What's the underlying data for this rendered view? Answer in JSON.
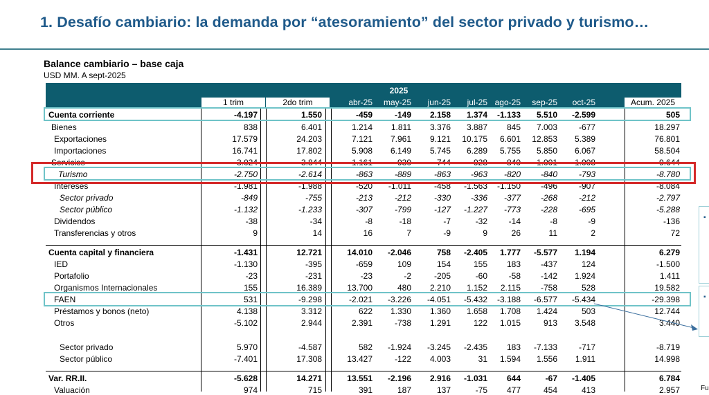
{
  "title": "1. Desafío cambiario: la demanda por “atesoramiento” del sector privado y turismo…",
  "table_title": "Balance cambiario – base caja",
  "table_subtitle": "USD MM. A sept-2025",
  "year": "2025",
  "col_headers": [
    "1 trim",
    "2do trim",
    "abr-25",
    "may-25",
    "jun-25",
    "jul-25",
    "ago-25",
    "sep-25",
    "oct-25",
    "Acum. 2025"
  ],
  "rows": [
    {
      "label": "Cuenta corriente",
      "style": "b",
      "v": [
        "-4.197",
        "1.550",
        "-459",
        "-149",
        "2.158",
        "1.374",
        "-1.133",
        "5.510",
        "-2.599",
        "505"
      ]
    },
    {
      "label": "Bienes",
      "style": "",
      "v": [
        "838",
        "6.401",
        "1.214",
        "1.811",
        "3.376",
        "3.887",
        "845",
        "7.003",
        "-677",
        "18.297"
      ]
    },
    {
      "label": "Exportaciones",
      "style": "",
      "v": [
        "17.579",
        "24.203",
        "7.121",
        "7.961",
        "9.121",
        "10.175",
        "6.601",
        "12.853",
        "5.389",
        "76.801"
      ]
    },
    {
      "label": "Importaciones",
      "style": "",
      "v": [
        "16.741",
        "17.802",
        "5.908",
        "6.149",
        "5.745",
        "6.289",
        "5.755",
        "5.850",
        "6.067",
        "58.504"
      ]
    },
    {
      "label": "Servicios",
      "style": "",
      "v": [
        "-3.024",
        "-3.844",
        "-1.161",
        "-930",
        "-744",
        "-928",
        "-840",
        "-1.001",
        "-1.008",
        "-9.644"
      ]
    },
    {
      "label": "Turismo",
      "style": "i",
      "v": [
        "-2.750",
        "-2.614",
        "-863",
        "-889",
        "-863",
        "-963",
        "-820",
        "-840",
        "-793",
        "-8.780"
      ]
    },
    {
      "label": "Intereses",
      "style": "",
      "v": [
        "-1.981",
        "-1.988",
        "-520",
        "-1.011",
        "-458",
        "-1.563",
        "-1.150",
        "-496",
        "-907",
        "-8.084"
      ]
    },
    {
      "label": "Sector privado",
      "style": "i",
      "v": [
        "-849",
        "-755",
        "-213",
        "-212",
        "-330",
        "-336",
        "-377",
        "-268",
        "-212",
        "-2.797"
      ]
    },
    {
      "label": "Sector público",
      "style": "i",
      "v": [
        "-1.132",
        "-1.233",
        "-307",
        "-799",
        "-127",
        "-1.227",
        "-773",
        "-228",
        "-695",
        "-5.288"
      ]
    },
    {
      "label": "Dividendos",
      "style": "",
      "v": [
        "-38",
        "-34",
        "-8",
        "-18",
        "-7",
        "-32",
        "-14",
        "-8",
        "-9",
        "-136"
      ]
    },
    {
      "label": "Transferencias y otros",
      "style": "",
      "v": [
        "9",
        "14",
        "16",
        "7",
        "-9",
        "9",
        "26",
        "11",
        "2",
        "72"
      ]
    },
    {
      "label": "Cuenta capital y financiera",
      "style": "b",
      "v": [
        "-1.431",
        "12.721",
        "14.010",
        "-2.046",
        "758",
        "-2.405",
        "1.777",
        "-5.577",
        "1.194",
        "6.279"
      ]
    },
    {
      "label": "IED",
      "style": "",
      "v": [
        "-1.130",
        "-395",
        "-659",
        "109",
        "154",
        "155",
        "183",
        "-437",
        "124",
        "-1.500"
      ]
    },
    {
      "label": "Portafolio",
      "style": "",
      "v": [
        "-23",
        "-231",
        "-23",
        "-2",
        "-205",
        "-60",
        "-58",
        "-142",
        "1.924",
        "1.411"
      ]
    },
    {
      "label": "Organismos Internacionales",
      "style": "",
      "v": [
        "155",
        "16.389",
        "13.700",
        "480",
        "2.210",
        "1.152",
        "2.115",
        "-758",
        "528",
        "19.582"
      ]
    },
    {
      "label": "FAEN",
      "style": "",
      "v": [
        "531",
        "-9.298",
        "-2.021",
        "-3.226",
        "-4.051",
        "-5.432",
        "-3.188",
        "-6.577",
        "-5.434",
        "-29.398"
      ]
    },
    {
      "label": "Préstamos y bonos (neto)",
      "style": "",
      "v": [
        "4.138",
        "3.312",
        "622",
        "1.330",
        "1.360",
        "1.658",
        "1.708",
        "1.424",
        "503",
        "12.744"
      ]
    },
    {
      "label": "Otros",
      "style": "",
      "v": [
        "-5.102",
        "2.944",
        "2.391",
        "-738",
        "1.291",
        "122",
        "1.015",
        "913",
        "3.548",
        "3.440"
      ]
    },
    {
      "label": "Sector privado",
      "style": "",
      "v": [
        "5.970",
        "-4.587",
        "582",
        "-1.924",
        "-3.245",
        "-2.435",
        "183",
        "-7.133",
        "-717",
        "-8.719"
      ]
    },
    {
      "label": "Sector público",
      "style": "",
      "v": [
        "-7.401",
        "17.308",
        "13.427",
        "-122",
        "4.003",
        "31",
        "1.594",
        "1.556",
        "1.911",
        "14.998"
      ]
    },
    {
      "label": "Var. RR.II.",
      "style": "b",
      "v": [
        "-5.628",
        "14.271",
        "13.551",
        "-2.196",
        "2.916",
        "-1.031",
        "644",
        "-67",
        "-1.405",
        "6.784"
      ]
    },
    {
      "label": "Valuación",
      "style": "",
      "v": [
        "974",
        "715",
        "391",
        "187",
        "137",
        "-75",
        "477",
        "454",
        "413",
        "2.957"
      ]
    }
  ],
  "footnote_fragment": "Fu"
}
